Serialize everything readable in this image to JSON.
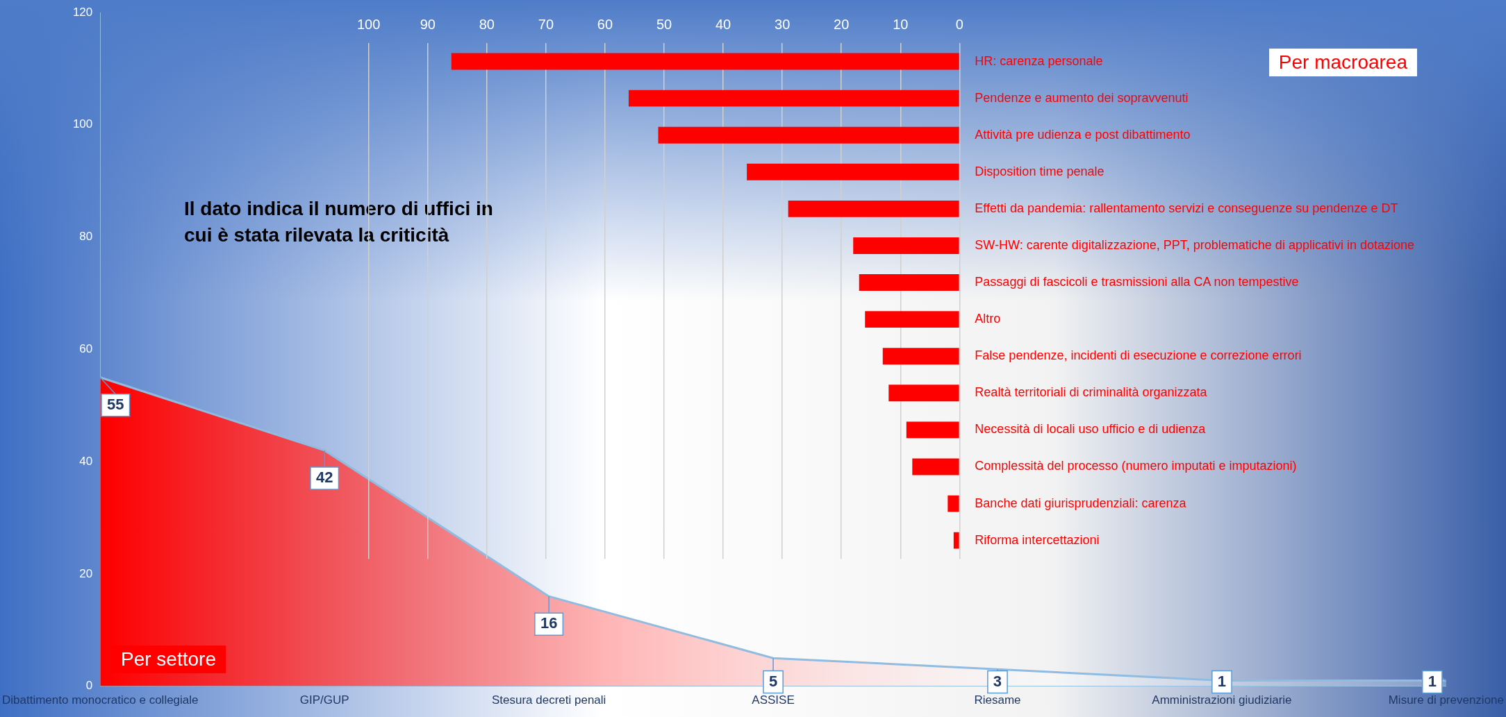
{
  "chart_data": [
    {
      "type": "area",
      "categories": [
        "Dibattimento monocratico e collegiale",
        "GIP/GUP",
        "Stesura decreti penali",
        "ASSISE",
        "Riesame",
        "Amministrazioni giudiziarie",
        "Misure di prevenzione"
      ],
      "values": [
        55,
        42,
        16,
        5,
        3,
        1,
        1
      ],
      "color": "#ff0000",
      "ylim": [
        0,
        120
      ],
      "yticks": [
        0,
        20,
        40,
        60,
        80,
        100,
        120
      ],
      "grid": false,
      "data_labels": true,
      "annotations": [
        "Per settore",
        "Il dato indica il numero di uffici in cui è stata rilevata la criticità"
      ]
    },
    {
      "type": "bar",
      "orientation": "horizontal",
      "categories": [
        "HR: carenza personale",
        "Pendenze e aumento dei sopravvenuti",
        "Attività pre udienza e post dibattimento",
        "Disposition time penale",
        "Effetti da pandemia: rallentamento servizi e conseguenze su pendenze e DT",
        "SW-HW: carente digitalizzazione, PPT, problematiche di applicativi in dotazione",
        "Passaggi di fascicoli e trasmissioni alla CA non tempestive",
        "Altro",
        "False pendenze, incidenti di esecuzione e correzione errori",
        "Realtà territoriali di criminalità organizzata",
        "Necessità di locali uso ufficio e di udienza",
        "Complessità del processo (numero imputati e imputazioni)",
        "Banche dati giurisprudenziali: carenza",
        "Riforma intercettazioni"
      ],
      "values": [
        86,
        56,
        51,
        36,
        29,
        18,
        17,
        16,
        13,
        12,
        9,
        8,
        2,
        1
      ],
      "color": "#ff0000",
      "xlim": [
        100,
        0
      ],
      "xticks": [
        100,
        90,
        80,
        70,
        60,
        50,
        40,
        30,
        20,
        10,
        0
      ],
      "grid": "x",
      "annotations": [
        "Per macroarea"
      ]
    }
  ]
}
